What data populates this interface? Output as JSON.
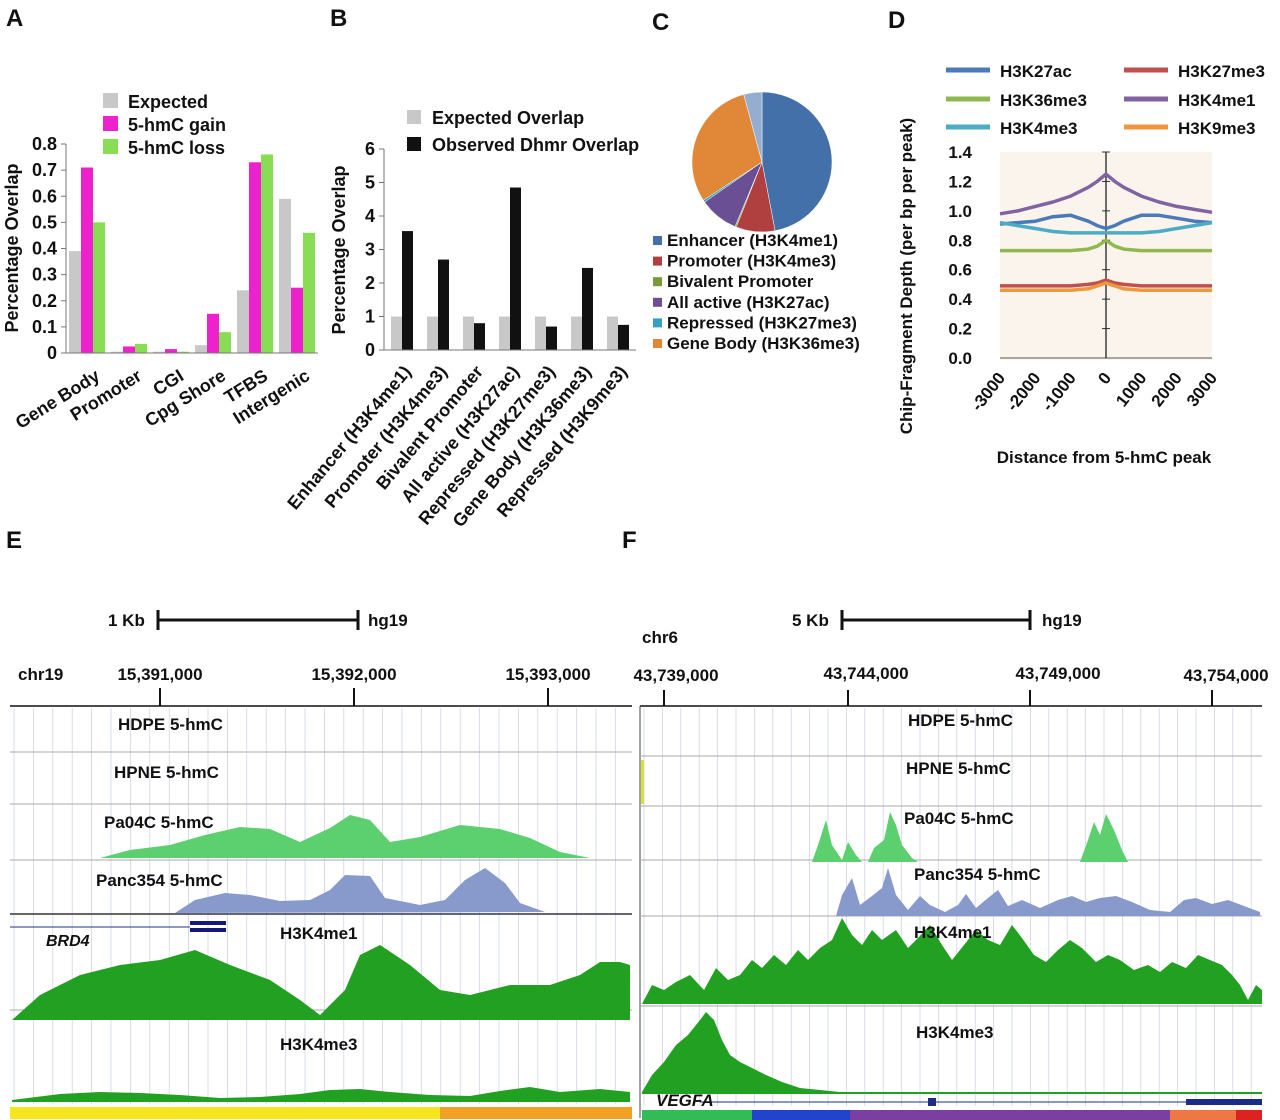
{
  "panel_letters": {
    "a": "A",
    "b": "B",
    "c": "C",
    "d": "D",
    "e": "E",
    "f": "F"
  },
  "colors": {
    "expected": "#c8c8c8",
    "gain": "#ee22cc",
    "loss": "#88dd55",
    "observed": "#111111",
    "enhancer": "#4470aa",
    "promoter": "#b04040",
    "bivalent": "#7a9a3a",
    "allactive": "#6a4f95",
    "repressed": "#35a0c0",
    "genebody": "#e08838",
    "extra": "#93aed0",
    "green5hmc": "#55cc66",
    "blue5hmc": "#8899cc",
    "darkgreen": "#22a022"
  },
  "chart_data": [
    {
      "id": "A",
      "type": "bar",
      "ylabel": "Percentage Overlap",
      "ylim": [
        0,
        0.8
      ],
      "yticks": [
        "0",
        "0.1",
        "0.2",
        "0.3",
        "0.4",
        "0.5",
        "0.6",
        "0.7",
        "0.8"
      ],
      "categories": [
        "Gene Body",
        "Promoter",
        "CGI",
        "Cpg Shore",
        "TFBS",
        "Intergenic"
      ],
      "series": [
        {
          "name": "Expected",
          "values": [
            0.39,
            0.005,
            0.005,
            0.03,
            0.24,
            0.59
          ]
        },
        {
          "name": "5-hmC gain",
          "values": [
            0.71,
            0.025,
            0.015,
            0.15,
            0.73,
            0.25
          ]
        },
        {
          "name": "5-hmC loss",
          "values": [
            0.5,
            0.035,
            0.005,
            0.08,
            0.76,
            0.46
          ]
        }
      ]
    },
    {
      "id": "B",
      "type": "bar",
      "ylabel": "Percentage Overlap",
      "ylim": [
        0,
        6
      ],
      "yticks": [
        "0",
        "1",
        "2",
        "3",
        "4",
        "5",
        "6"
      ],
      "categories": [
        "Enhancer (H3K4me1)",
        "Promoter (H3K4me3)",
        "Bivalent Promoter",
        "All active (H3K27ac)",
        "Repressed (H3K27me3)",
        "Gene Body (H3K36me3)",
        "Repressed (H3K9me3)"
      ],
      "series": [
        {
          "name": "Expected Overlap",
          "values": [
            1,
            1,
            1,
            1,
            1,
            1,
            1
          ]
        },
        {
          "name": "Observed Dhmr Overlap",
          "values": [
            3.55,
            2.7,
            0.8,
            4.85,
            0.7,
            2.45,
            0.75
          ]
        }
      ]
    },
    {
      "id": "C",
      "type": "pie",
      "slices": [
        {
          "name": "Enhancer (H3K4me1)",
          "value": 47
        },
        {
          "name": "Promoter (H3K4me3)",
          "value": 9
        },
        {
          "name": "Bivalent Promoter",
          "value": 0.3
        },
        {
          "name": "All active (H3K27ac)",
          "value": 9
        },
        {
          "name": "Repressed (H3K27me3)",
          "value": 0.5
        },
        {
          "name": "Gene Body (H3K36me3)",
          "value": 30
        },
        {
          "name": "",
          "value": 4.2
        }
      ]
    },
    {
      "id": "D",
      "type": "line",
      "ylabel": "Chip-Fragment Depth (per bp per peak)",
      "xlabel": "Distance from 5-hmC peak",
      "xlim": [
        -3000,
        3000
      ],
      "ylim": [
        0,
        1.4
      ],
      "xticks": [
        "-3000",
        "-2000",
        "-1000",
        "0",
        "1000",
        "2000",
        "3000"
      ],
      "yticks": [
        "0.0",
        "0.2",
        "0.4",
        "0.6",
        "0.8",
        "1.0",
        "1.2",
        "1.4"
      ],
      "x": [
        -3000,
        -2500,
        -2000,
        -1500,
        -1000,
        -500,
        -250,
        0,
        250,
        500,
        1000,
        1500,
        2000,
        2500,
        3000
      ],
      "series": [
        {
          "name": "H3K27ac",
          "values": [
            0.91,
            0.92,
            0.93,
            0.96,
            0.97,
            0.93,
            0.9,
            0.88,
            0.9,
            0.93,
            0.97,
            0.97,
            0.95,
            0.93,
            0.92
          ]
        },
        {
          "name": "H3K27me3",
          "values": [
            0.49,
            0.49,
            0.49,
            0.49,
            0.49,
            0.5,
            0.51,
            0.53,
            0.51,
            0.5,
            0.49,
            0.49,
            0.49,
            0.49,
            0.49
          ]
        },
        {
          "name": "H3K36me3",
          "values": [
            0.73,
            0.73,
            0.73,
            0.73,
            0.73,
            0.74,
            0.76,
            0.8,
            0.76,
            0.74,
            0.73,
            0.73,
            0.73,
            0.73,
            0.73
          ]
        },
        {
          "name": "H3K4me1",
          "values": [
            0.98,
            1.0,
            1.03,
            1.06,
            1.1,
            1.16,
            1.2,
            1.25,
            1.2,
            1.16,
            1.1,
            1.06,
            1.03,
            1.01,
            0.99
          ]
        },
        {
          "name": "H3K4me3",
          "values": [
            0.92,
            0.9,
            0.88,
            0.86,
            0.85,
            0.85,
            0.85,
            0.85,
            0.85,
            0.85,
            0.85,
            0.86,
            0.88,
            0.9,
            0.92
          ]
        },
        {
          "name": "H3K9me3",
          "values": [
            0.46,
            0.46,
            0.46,
            0.46,
            0.46,
            0.47,
            0.49,
            0.51,
            0.49,
            0.47,
            0.46,
            0.46,
            0.46,
            0.46,
            0.46
          ]
        }
      ]
    }
  ],
  "panel_d_legend": [
    "H3K27ac",
    "H3K27me3",
    "H3K36me3",
    "H3K4me1",
    "H3K4me3",
    "H3K9me3"
  ],
  "browser_e": {
    "scale_label": "1 Kb",
    "assembly": "hg19",
    "chrom": "chr19",
    "coords": [
      "15,391,000",
      "15,392,000",
      "15,393,000"
    ],
    "tracks": [
      "HDPE 5-hmC",
      "HPNE 5-hmC",
      "Pa04C 5-hmC",
      "Panc354 5-hmC",
      "H3K4me1",
      "H3K4me3"
    ],
    "gene": "BRD4"
  },
  "browser_f": {
    "scale_label": "5 Kb",
    "assembly": "hg19",
    "chrom": "chr6",
    "coords": [
      "43,739,000",
      "43,744,000",
      "43,749,000",
      "43,754,000"
    ],
    "tracks": [
      "HDPE 5-hmC",
      "HPNE 5-hmC",
      "Pa04C 5-hmC",
      "Panc354 5-hmC",
      "H3K4me1",
      "H3K4me3"
    ],
    "gene": "VEGFA"
  }
}
